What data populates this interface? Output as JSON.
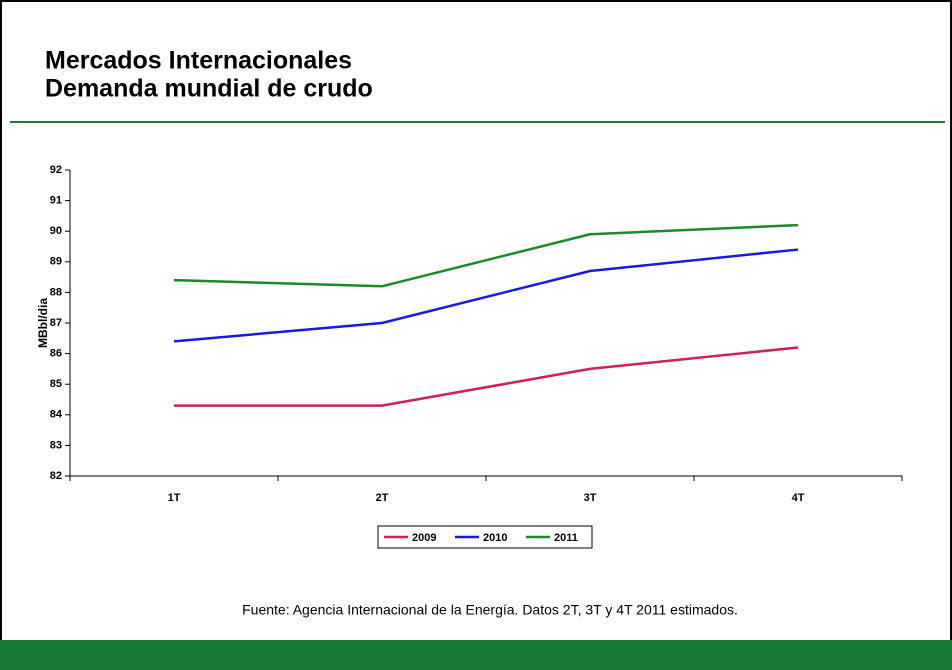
{
  "chart_data": {
    "type": "line",
    "title": "Mercados Internacionales",
    "subtitle": "Demanda mundial de crudo",
    "y_label": "MBbl/dia",
    "categories": [
      "1T",
      "2T",
      "3T",
      "4T"
    ],
    "series": [
      {
        "name": "2009",
        "color": "#cc2256",
        "values": [
          84.3,
          84.3,
          85.5,
          86.2
        ]
      },
      {
        "name": "2010",
        "color": "#1a1adc",
        "values": [
          86.4,
          87.0,
          88.7,
          89.4
        ]
      },
      {
        "name": "2011",
        "color": "#1a8a2a",
        "values": [
          88.4,
          88.2,
          89.9,
          90.2
        ]
      }
    ],
    "ylim": [
      82,
      92
    ],
    "yticks": [
      82,
      83,
      84,
      85,
      86,
      87,
      88,
      89,
      90,
      91,
      92
    ],
    "grid": false,
    "legend": "bottom",
    "source": "Fuente: Agencia Internacional de la Energía. Datos 2T, 3T y 4T 2011 estimados."
  }
}
